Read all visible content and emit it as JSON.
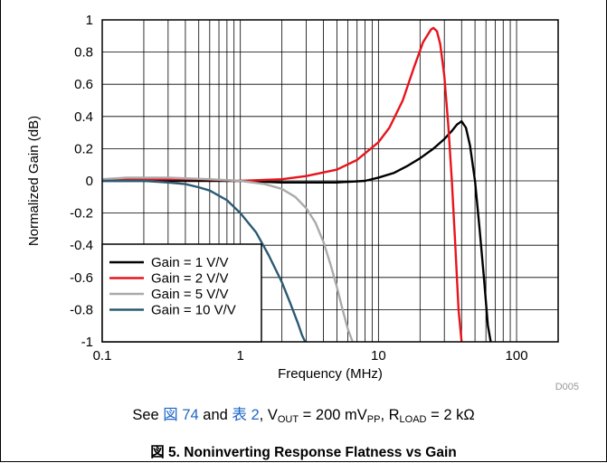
{
  "chart_data": {
    "type": "line",
    "title": "",
    "xlabel": "Frequency (MHz)",
    "ylabel": "Normalized Gain (dB)",
    "xscale": "log",
    "xlim": [
      0.1,
      200
    ],
    "ylim": [
      -1,
      1
    ],
    "grid": true,
    "legend_position": "bottom-left",
    "x_ticks": [
      {
        "value": 0.1,
        "label": "0.1"
      },
      {
        "value": 1,
        "label": "1"
      },
      {
        "value": 10,
        "label": "10"
      },
      {
        "value": 100,
        "label": "100"
      }
    ],
    "y_ticks": [
      {
        "value": 1,
        "label": "1"
      },
      {
        "value": 0.8,
        "label": "0.8"
      },
      {
        "value": 0.6,
        "label": "0.6"
      },
      {
        "value": 0.4,
        "label": "0.4"
      },
      {
        "value": 0.2,
        "label": "0.2"
      },
      {
        "value": 0,
        "label": "0"
      },
      {
        "value": -0.2,
        "label": "-0.2"
      },
      {
        "value": -0.4,
        "label": "-0.4"
      },
      {
        "value": -0.6,
        "label": "-0.6"
      },
      {
        "value": -0.8,
        "label": "-0.8"
      },
      {
        "value": -1,
        "label": "-1"
      }
    ],
    "series": [
      {
        "name": "Gain = 1 V/V",
        "color": "#000000",
        "x": [
          0.1,
          0.3,
          1,
          2,
          5,
          8,
          10,
          13,
          16,
          20,
          25,
          30,
          34,
          37,
          40,
          43,
          46,
          50,
          54,
          58,
          62,
          65
        ],
        "y": [
          0,
          0,
          0,
          -0.01,
          -0.01,
          0,
          0.02,
          0.05,
          0.09,
          0.14,
          0.2,
          0.26,
          0.31,
          0.35,
          0.37,
          0.33,
          0.22,
          0.0,
          -0.3,
          -0.6,
          -0.9,
          -1.0
        ]
      },
      {
        "name": "Gain = 2 V/V",
        "color": "#e8141b",
        "x": [
          0.1,
          0.5,
          1,
          2,
          3,
          5,
          7,
          10,
          12,
          15,
          18,
          21,
          24,
          25,
          26.5,
          28,
          30,
          32,
          34,
          36,
          38,
          40
        ],
        "y": [
          0.01,
          0.01,
          0,
          0.01,
          0.03,
          0.07,
          0.13,
          0.24,
          0.33,
          0.5,
          0.7,
          0.86,
          0.94,
          0.95,
          0.93,
          0.85,
          0.65,
          0.35,
          0.0,
          -0.4,
          -0.8,
          -1.0
        ]
      },
      {
        "name": "Gain = 5 V/V",
        "color": "#aaaaaa",
        "x": [
          0.1,
          0.15,
          0.3,
          0.6,
          1,
          1.5,
          2,
          2.5,
          3,
          3.5,
          4,
          4.5,
          5,
          5.5,
          6,
          6.5
        ],
        "y": [
          0.01,
          0.02,
          0.02,
          0.01,
          0,
          -0.02,
          -0.05,
          -0.1,
          -0.17,
          -0.26,
          -0.38,
          -0.52,
          -0.66,
          -0.8,
          -0.92,
          -1.0
        ]
      },
      {
        "name": "Gain = 10 V/V",
        "color": "#2b5a72",
        "x": [
          0.1,
          0.2,
          0.3,
          0.4,
          0.5,
          0.6,
          0.8,
          1,
          1.3,
          1.6,
          2,
          2.3,
          2.6,
          2.8,
          2.95
        ],
        "y": [
          0,
          0,
          -0.01,
          -0.02,
          -0.04,
          -0.06,
          -0.12,
          -0.2,
          -0.32,
          -0.46,
          -0.63,
          -0.76,
          -0.88,
          -0.96,
          -1.0
        ]
      }
    ]
  },
  "figure_id": "D005",
  "note": {
    "prefix": "See ",
    "figure_ref": "図 74",
    "and": " and ",
    "table_ref": "表 2",
    "vout_text": ", V",
    "vout_sub": "OUT",
    "vout_value": " = 200 mV",
    "vout_unit_sub": "PP",
    "rload_text": ", R",
    "rload_sub": "LOAD",
    "rload_value": " = 2 kΩ"
  },
  "caption": "図 5. Noninverting Response Flatness vs Gain"
}
